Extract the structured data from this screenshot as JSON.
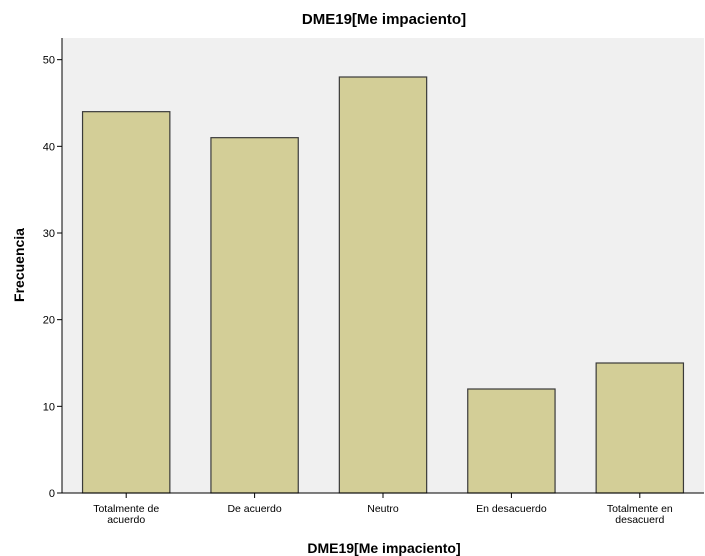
{
  "chart_data": {
    "type": "bar",
    "title": "DME19[Me impaciento]",
    "xlabel": "DME19[Me impaciento]",
    "ylabel": "Frecuencia",
    "categories": [
      [
        "Totalmente de",
        "acuerdo"
      ],
      [
        "De acuerdo"
      ],
      [
        "Neutro"
      ],
      [
        "En desacuerdo"
      ],
      [
        "Totalmente en",
        "desacuerd"
      ]
    ],
    "values": [
      44,
      41,
      48,
      12,
      15
    ],
    "yticks": [
      0,
      10,
      20,
      30,
      40,
      50
    ],
    "ylim": [
      0,
      52.5
    ],
    "grid": false,
    "colors": {
      "plot_background": "#f0f0f0",
      "bar_fill": "#d3ce97",
      "bar_stroke": "#3a3a3a"
    }
  }
}
